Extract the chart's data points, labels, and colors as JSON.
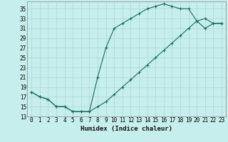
{
  "xlabel": "Humidex (Indice chaleur)",
  "bg_color": "#c6eeec",
  "grid_color": "#a8d8d5",
  "line_color": "#1a6b5a",
  "xlim": [
    -0.5,
    23.5
  ],
  "ylim": [
    13,
    36.5
  ],
  "yticks": [
    13,
    15,
    17,
    19,
    21,
    23,
    25,
    27,
    29,
    31,
    33,
    35
  ],
  "xticks": [
    0,
    1,
    2,
    3,
    4,
    5,
    6,
    7,
    8,
    9,
    10,
    11,
    12,
    13,
    14,
    15,
    16,
    17,
    18,
    19,
    20,
    21,
    22,
    23
  ],
  "line1_x": [
    0,
    1,
    2,
    3,
    4,
    5,
    6,
    7,
    8,
    9,
    10,
    11,
    12,
    13,
    14,
    15,
    16,
    17,
    18,
    19,
    20,
    21,
    22,
    23
  ],
  "line1_y": [
    18,
    17,
    16.5,
    15,
    15,
    14,
    14,
    14,
    21,
    27,
    31,
    32,
    33,
    34,
    35,
    35.5,
    36,
    35.5,
    35,
    35,
    32.5,
    33,
    32,
    32
  ],
  "line2_x": [
    0,
    1,
    2,
    3,
    4,
    5,
    6,
    7,
    8,
    9,
    10,
    11,
    12,
    13,
    14,
    15,
    16,
    17,
    18,
    19,
    20,
    21,
    22,
    23
  ],
  "line2_y": [
    18,
    17,
    16.5,
    15,
    15,
    14,
    14,
    14,
    15,
    16,
    17.5,
    19,
    20.5,
    22,
    23.5,
    25,
    26.5,
    28,
    29.5,
    31,
    32.5,
    31,
    32,
    32
  ]
}
